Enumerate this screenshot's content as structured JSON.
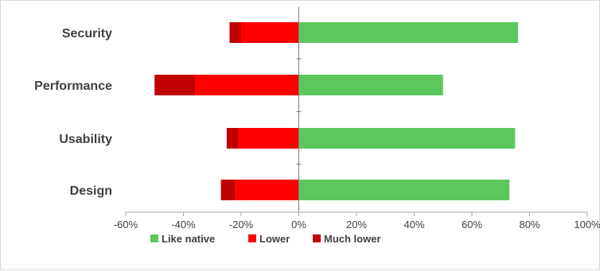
{
  "chart_data": {
    "type": "bar",
    "orientation": "horizontal",
    "stacked": "diverging",
    "categories": [
      "Security",
      "Performance",
      "Usability",
      "Design"
    ],
    "series": [
      {
        "name": "Like native",
        "color": "#5cc85c",
        "values": [
          76,
          50,
          75,
          73
        ]
      },
      {
        "name": "Lower",
        "color": "#ff0000",
        "values": [
          -20,
          -36,
          -21,
          -22
        ]
      },
      {
        "name": "Much lower",
        "color": "#c00000",
        "values": [
          -4,
          -14,
          -4,
          -5
        ]
      }
    ],
    "xlim": [
      -60,
      100
    ],
    "x_ticks": [
      "-60%",
      "-40%",
      "-20%",
      "0%",
      "20%",
      "40%",
      "60%",
      "80%",
      "100%"
    ],
    "x_tick_values": [
      -60,
      -40,
      -20,
      0,
      20,
      40,
      60,
      80,
      100
    ],
    "grid": false,
    "legend_position": "bottom",
    "title": "",
    "xlabel": "",
    "ylabel": ""
  }
}
